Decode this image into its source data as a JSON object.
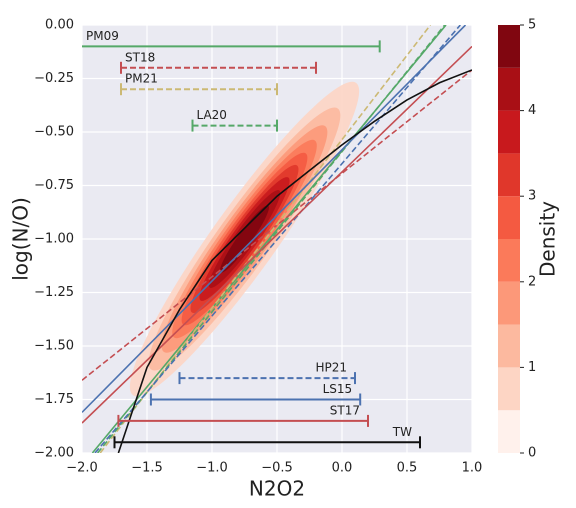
{
  "chart_data": {
    "type": "line",
    "xlabel": "N2O2",
    "ylabel": "log(N/O)",
    "xlim": [
      -2,
      1
    ],
    "ylim": [
      -2,
      0
    ],
    "xticks": [
      {
        "value": -2,
        "label": "−2.0"
      },
      {
        "value": -1.5,
        "label": "−1.5"
      },
      {
        "value": -1,
        "label": "−1.0"
      },
      {
        "value": -0.5,
        "label": "−0.5"
      },
      {
        "value": 0,
        "label": "0.0"
      },
      {
        "value": 0.5,
        "label": "0.5"
      },
      {
        "value": 1,
        "label": "1.0"
      }
    ],
    "yticks": [
      {
        "value": 0,
        "label": "0.00"
      },
      {
        "value": -0.25,
        "label": "−0.25"
      },
      {
        "value": -0.5,
        "label": "−0.50"
      },
      {
        "value": -0.75,
        "label": "−0.75"
      },
      {
        "value": -1,
        "label": "−1.00"
      },
      {
        "value": -1.25,
        "label": "−1.25"
      },
      {
        "value": -1.5,
        "label": "−1.50"
      },
      {
        "value": -1.75,
        "label": "−1.75"
      },
      {
        "value": -2,
        "label": "−2.00"
      }
    ],
    "grid": true,
    "density": {
      "center": [
        -0.75,
        -1.0
      ],
      "slope": 0.85,
      "spread": [
        0.4,
        0.07
      ],
      "peak": 5,
      "levels": [
        0.5,
        1,
        1.5,
        2,
        2.5,
        3,
        3.5,
        4,
        4.5
      ]
    },
    "colorbar": {
      "label": "Density",
      "lim": [
        0,
        5
      ],
      "ticks": [
        0,
        1,
        2,
        3,
        4,
        5
      ],
      "colors": [
        "#fff1ec",
        "#fdd5c4",
        "#fcb99f",
        "#fc9879",
        "#fb7a5a",
        "#f45a41",
        "#e0372b",
        "#c8191d",
        "#a90f15",
        "#800610"
      ]
    },
    "series": [
      {
        "name": "PM09",
        "color": "#55a868",
        "dashed": false,
        "x": [
          -1.92,
          0.8
        ],
        "values": [
          -2,
          0
        ],
        "range": [
          -2,
          0.29
        ],
        "range_y": -0.1
      },
      {
        "name": "ST18",
        "color": "#c44e52",
        "dashed": true,
        "x": [
          -2,
          1
        ],
        "values": [
          -1.66,
          -0.21
        ],
        "range": [
          -1.7,
          -0.2
        ],
        "range_y": -0.2
      },
      {
        "name": "PM21",
        "color": "#ccb974",
        "dashed": true,
        "x": [
          -1.86,
          0.68
        ],
        "values": [
          -2,
          0
        ],
        "range": [
          -1.7,
          -0.5
        ],
        "range_y": -0.3
      },
      {
        "name": "LA20",
        "color": "#55a868",
        "dashed": true,
        "x": [
          -1.88,
          0.79
        ],
        "values": [
          -2,
          0
        ],
        "range": [
          -1.15,
          -0.5
        ],
        "range_y": -0.47
      },
      {
        "name": "HP21",
        "color": "#4c72b0",
        "dashed": true,
        "x": [
          -1.9,
          0.91
        ],
        "values": [
          -2,
          0
        ],
        "range": [
          -1.25,
          0.1
        ],
        "range_y": -1.65
      },
      {
        "name": "LS15",
        "color": "#4c72b0",
        "dashed": false,
        "x": [
          -2,
          0.95
        ],
        "values": [
          -1.81,
          0
        ],
        "range": [
          -1.47,
          0.14
        ],
        "range_y": -1.75
      },
      {
        "name": "ST17",
        "color": "#c44e52",
        "dashed": false,
        "x": [
          -2,
          1
        ],
        "values": [
          -1.86,
          -0.1
        ],
        "range": [
          -1.72,
          0.2
        ],
        "range_y": -1.85
      },
      {
        "name": "TW",
        "color": "#111111",
        "dashed": false,
        "x": [
          -1.72,
          -1.5,
          -1.25,
          -1,
          -0.75,
          -0.5,
          -0.25,
          0,
          0.25,
          0.5,
          0.75,
          1
        ],
        "values": [
          -2,
          -1.6,
          -1.33,
          -1.1,
          -0.95,
          -0.8,
          -0.68,
          -0.56,
          -0.45,
          -0.35,
          -0.27,
          -0.21
        ],
        "range": [
          -1.75,
          0.6
        ],
        "range_y": -1.95
      }
    ]
  }
}
